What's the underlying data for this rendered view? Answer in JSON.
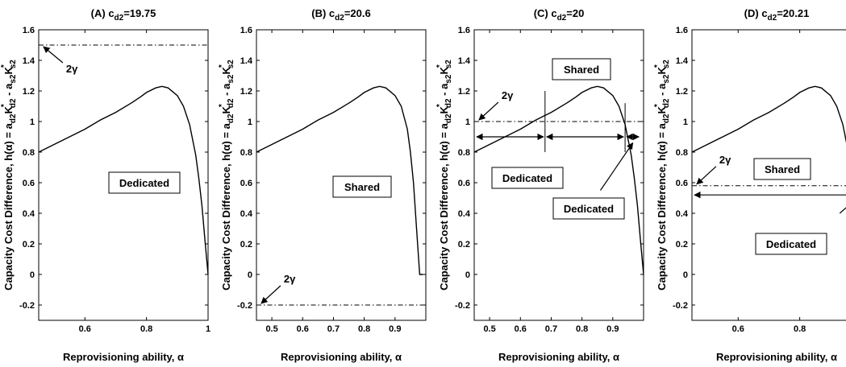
{
  "figure": {
    "ylabel": "Capacity Cost Difference, h(α) = a_d2 K*_d2 - a_s2 K*_s2",
    "xlabel": "Reprovisioning ability, α"
  },
  "chart_data": [
    {
      "type": "line",
      "panel": "A",
      "title": "(A) c_d2=19.75",
      "xlim": [
        0.45,
        1.0
      ],
      "ylim": [
        -0.3,
        1.6
      ],
      "xticks": [
        0.6,
        0.8,
        1
      ],
      "yticks": [
        -0.2,
        0,
        0.2,
        0.4,
        0.6,
        0.8,
        1,
        1.2,
        1.4,
        1.6
      ],
      "series": [
        {
          "values": [
            [
              0.45,
              0.8
            ],
            [
              0.5,
              0.85
            ],
            [
              0.55,
              0.9
            ],
            [
              0.6,
              0.95
            ],
            [
              0.65,
              1.01
            ],
            [
              0.7,
              1.06
            ],
            [
              0.75,
              1.12
            ],
            [
              0.78,
              1.16
            ],
            [
              0.8,
              1.19
            ],
            [
              0.83,
              1.22
            ],
            [
              0.85,
              1.23
            ],
            [
              0.87,
              1.22
            ],
            [
              0.9,
              1.17
            ],
            [
              0.92,
              1.1
            ],
            [
              0.94,
              0.98
            ],
            [
              0.96,
              0.78
            ],
            [
              0.97,
              0.63
            ],
            [
              0.98,
              0.45
            ],
            [
              0.99,
              0.22
            ],
            [
              1.0,
              0.0
            ]
          ]
        }
      ],
      "two_gamma": 1.5,
      "annotations": [
        {
          "text": "2γ",
          "target": [
            0.455,
            1.5
          ]
        },
        {
          "text": "Dedicated",
          "type": "box"
        }
      ]
    },
    {
      "type": "line",
      "panel": "B",
      "title": "(B) c_d2=20.6",
      "xlim": [
        0.45,
        1.0
      ],
      "ylim": [
        -0.3,
        1.6
      ],
      "xticks": [
        0.5,
        0.6,
        0.7,
        0.8,
        0.9
      ],
      "yticks": [
        -0.2,
        0,
        0.2,
        0.4,
        0.6,
        0.8,
        1,
        1.2,
        1.4,
        1.6
      ],
      "series": [
        {
          "values": [
            [
              0.45,
              0.8
            ],
            [
              0.5,
              0.85
            ],
            [
              0.55,
              0.9
            ],
            [
              0.6,
              0.95
            ],
            [
              0.65,
              1.01
            ],
            [
              0.7,
              1.06
            ],
            [
              0.75,
              1.12
            ],
            [
              0.78,
              1.16
            ],
            [
              0.8,
              1.19
            ],
            [
              0.83,
              1.22
            ],
            [
              0.85,
              1.23
            ],
            [
              0.87,
              1.22
            ],
            [
              0.9,
              1.17
            ],
            [
              0.92,
              1.1
            ],
            [
              0.94,
              0.95
            ],
            [
              0.95,
              0.8
            ],
            [
              0.96,
              0.6
            ],
            [
              0.97,
              0.3
            ],
            [
              0.98,
              0.0
            ],
            [
              0.99,
              0.0
            ]
          ]
        }
      ],
      "two_gamma": -0.2,
      "annotations": [
        {
          "text": "2γ",
          "target": [
            0.455,
            -0.2
          ]
        },
        {
          "text": "Shared",
          "type": "box"
        }
      ]
    },
    {
      "type": "line",
      "panel": "C",
      "title": "(C) c_d2=20",
      "xlim": [
        0.45,
        1.0
      ],
      "ylim": [
        -0.3,
        1.6
      ],
      "xticks": [
        0.5,
        0.6,
        0.7,
        0.8,
        0.9
      ],
      "yticks": [
        -0.2,
        0,
        0.2,
        0.4,
        0.6,
        0.8,
        1,
        1.2,
        1.4,
        1.6
      ],
      "series": [
        {
          "values": [
            [
              0.45,
              0.8
            ],
            [
              0.5,
              0.85
            ],
            [
              0.55,
              0.9
            ],
            [
              0.6,
              0.95
            ],
            [
              0.65,
              1.01
            ],
            [
              0.7,
              1.06
            ],
            [
              0.75,
              1.12
            ],
            [
              0.78,
              1.16
            ],
            [
              0.8,
              1.19
            ],
            [
              0.83,
              1.22
            ],
            [
              0.85,
              1.23
            ],
            [
              0.87,
              1.22
            ],
            [
              0.9,
              1.17
            ],
            [
              0.92,
              1.1
            ],
            [
              0.94,
              0.98
            ],
            [
              0.96,
              0.78
            ],
            [
              0.97,
              0.63
            ],
            [
              0.98,
              0.45
            ],
            [
              0.99,
              0.22
            ],
            [
              1.0,
              0.0
            ]
          ]
        }
      ],
      "two_gamma": 1.0,
      "annotations": [
        {
          "text": "2γ",
          "target": [
            0.455,
            1.0
          ]
        },
        {
          "text": "Shared",
          "type": "box"
        },
        {
          "text": "Dedicated",
          "type": "box"
        },
        {
          "text": "Dedicated",
          "type": "box"
        }
      ]
    },
    {
      "type": "line",
      "panel": "D",
      "title": "(D) c_d2=20.21",
      "xlim": [
        0.45,
        1.0
      ],
      "ylim": [
        -0.3,
        1.6
      ],
      "xticks": [
        0.6,
        0.8
      ],
      "yticks": [
        -0.2,
        0,
        0.2,
        0.4,
        0.6,
        0.8,
        1,
        1.2,
        1.4,
        1.6
      ],
      "series": [
        {
          "values": [
            [
              0.45,
              0.8
            ],
            [
              0.5,
              0.85
            ],
            [
              0.55,
              0.9
            ],
            [
              0.6,
              0.95
            ],
            [
              0.65,
              1.01
            ],
            [
              0.7,
              1.06
            ],
            [
              0.75,
              1.12
            ],
            [
              0.78,
              1.16
            ],
            [
              0.8,
              1.19
            ],
            [
              0.83,
              1.22
            ],
            [
              0.85,
              1.23
            ],
            [
              0.87,
              1.22
            ],
            [
              0.9,
              1.17
            ],
            [
              0.92,
              1.1
            ],
            [
              0.94,
              0.98
            ],
            [
              0.96,
              0.78
            ],
            [
              0.97,
              0.63
            ],
            [
              0.98,
              0.45
            ],
            [
              0.99,
              0.22
            ],
            [
              1.0,
              0.0
            ]
          ]
        }
      ],
      "two_gamma": 0.58,
      "annotations": [
        {
          "text": "2γ",
          "target": [
            0.455,
            0.58
          ]
        },
        {
          "text": "Shared",
          "type": "box"
        },
        {
          "text": "Dedicated",
          "type": "box"
        }
      ]
    }
  ]
}
